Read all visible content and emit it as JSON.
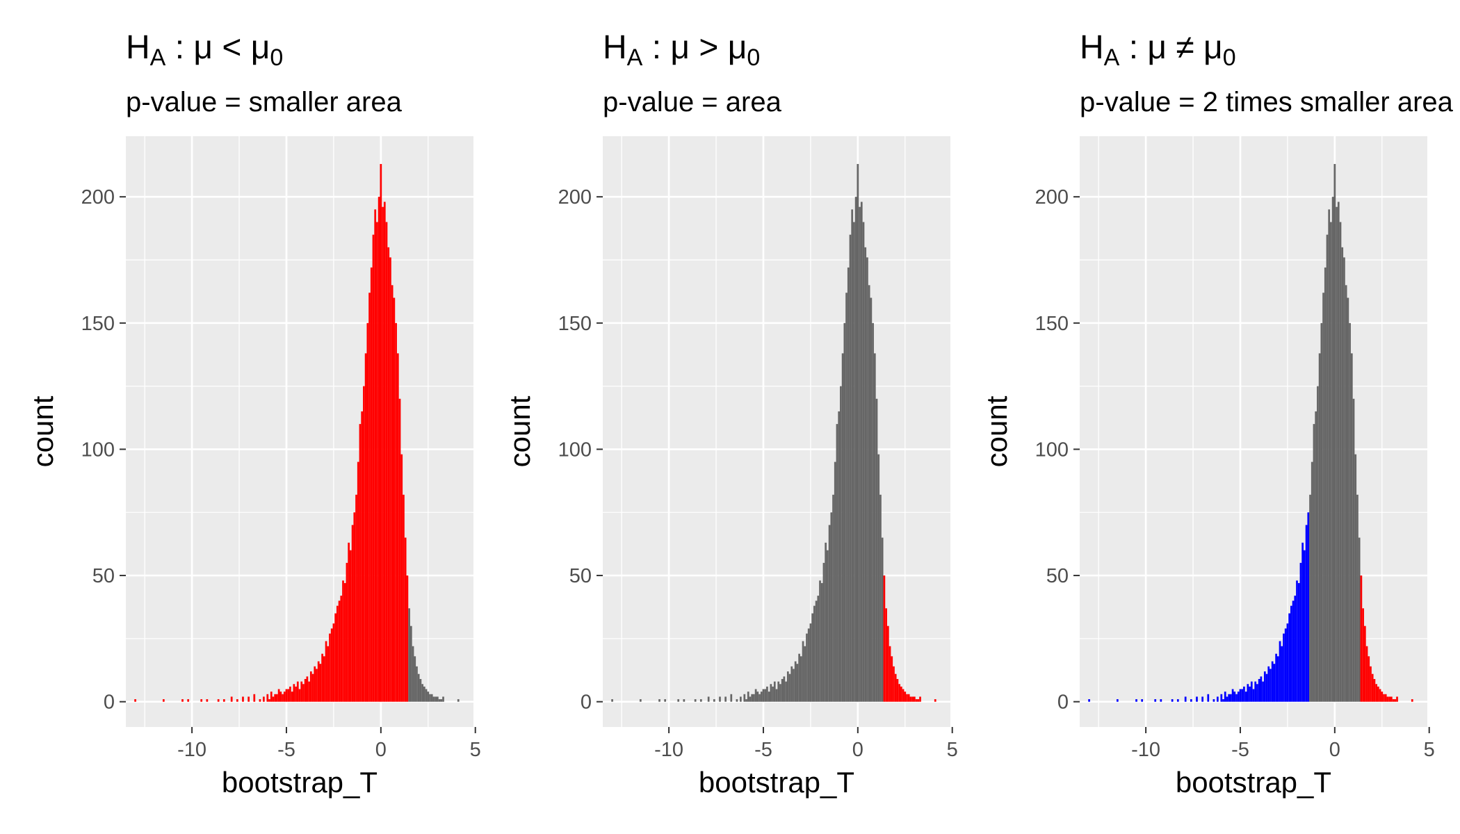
{
  "chart_data": [
    {
      "type": "bar",
      "title_main": "H",
      "title_sub": "A",
      "title_rest": " : μ < μ",
      "title_end": "0",
      "subtitle": "p-value = smaller area",
      "xlabel": "bootstrap_T",
      "ylabel": "count",
      "xlim": [
        -13.5,
        4.9
      ],
      "ylim": [
        -10,
        224
      ],
      "x_ticks": [
        -10,
        -5,
        0,
        5
      ],
      "x_tick_labels": [
        "-10",
        "-5",
        "0",
        "5"
      ],
      "y_ticks": [
        0,
        50,
        100,
        150,
        200
      ],
      "y_tick_labels": [
        "0",
        "50",
        "100",
        "150",
        "200"
      ],
      "colors": {
        "panel": "#ebebeb",
        "grid": "#ffffff",
        "default": "#666666",
        "upper": "#ff0000",
        "lower": "#0000ff"
      },
      "shading": {
        "lower_cut": 1.4,
        "lower_color": "red",
        "upper_cut": null,
        "upper_color": null
      },
      "bin_width": 0.1,
      "bins_x": [
        -13.0,
        -11.5,
        -10.5,
        -10.2,
        -9.5,
        -9.2,
        -8.6,
        -8.3,
        -7.9,
        -7.6,
        -7.3,
        -7.0,
        -6.7,
        -6.4,
        -6.2,
        -6.0,
        -5.9,
        -5.8,
        -5.7,
        -5.6,
        -5.5,
        -5.4,
        -5.3,
        -5.2,
        -5.1,
        -5.0,
        -4.9,
        -4.8,
        -4.7,
        -4.6,
        -4.5,
        -4.4,
        -4.3,
        -4.2,
        -4.1,
        -4.0,
        -3.9,
        -3.8,
        -3.7,
        -3.6,
        -3.5,
        -3.4,
        -3.3,
        -3.2,
        -3.1,
        -3.0,
        -2.9,
        -2.8,
        -2.7,
        -2.6,
        -2.5,
        -2.4,
        -2.3,
        -2.2,
        -2.1,
        -2.0,
        -1.9,
        -1.8,
        -1.7,
        -1.6,
        -1.5,
        -1.4,
        -1.3,
        -1.2,
        -1.1,
        -1.0,
        -0.9,
        -0.8,
        -0.7,
        -0.6,
        -0.5,
        -0.4,
        -0.3,
        -0.2,
        -0.1,
        0.0,
        0.1,
        0.2,
        0.3,
        0.4,
        0.5,
        0.6,
        0.7,
        0.8,
        0.9,
        1.0,
        1.1,
        1.2,
        1.3,
        1.4,
        1.5,
        1.6,
        1.7,
        1.8,
        1.9,
        2.0,
        2.1,
        2.2,
        2.3,
        2.4,
        2.5,
        2.6,
        2.7,
        2.8,
        2.9,
        3.0,
        3.1,
        3.2,
        3.3,
        4.1
      ],
      "bins_count": [
        1,
        1,
        1,
        1,
        1,
        1,
        1,
        1,
        2,
        1,
        2,
        2,
        3,
        1,
        2,
        3,
        1,
        4,
        2,
        3,
        3,
        5,
        4,
        3,
        4,
        5,
        5,
        6,
        4,
        7,
        6,
        8,
        5,
        8,
        7,
        9,
        10,
        8,
        12,
        11,
        14,
        13,
        16,
        15,
        19,
        18,
        24,
        22,
        27,
        29,
        31,
        35,
        38,
        40,
        42,
        48,
        47,
        55,
        63,
        60,
        70,
        75,
        82,
        95,
        110,
        115,
        125,
        138,
        150,
        162,
        172,
        185,
        195,
        190,
        200,
        213,
        196,
        198,
        190,
        180,
        176,
        165,
        160,
        150,
        138,
        120,
        98,
        82,
        65,
        50,
        37,
        30,
        22,
        18,
        14,
        11,
        9,
        7,
        6,
        5,
        4,
        3,
        3,
        2,
        2,
        2,
        1,
        1,
        2,
        1
      ]
    },
    {
      "type": "bar",
      "title_main": "H",
      "title_sub": "A",
      "title_rest": " : μ > μ",
      "title_end": "0",
      "subtitle": "p-value = area",
      "xlabel": "bootstrap_T",
      "ylabel": "count",
      "xlim": [
        -13.5,
        4.9
      ],
      "ylim": [
        -10,
        224
      ],
      "x_ticks": [
        -10,
        -5,
        0,
        5
      ],
      "x_tick_labels": [
        "-10",
        "-5",
        "0",
        "5"
      ],
      "y_ticks": [
        0,
        50,
        100,
        150,
        200
      ],
      "y_tick_labels": [
        "0",
        "50",
        "100",
        "150",
        "200"
      ],
      "colors": {
        "panel": "#ebebeb",
        "grid": "#ffffff",
        "default": "#666666",
        "upper": "#ff0000",
        "lower": "#0000ff"
      },
      "shading": {
        "lower_cut": null,
        "lower_color": null,
        "upper_cut": 1.4,
        "upper_color": "red"
      },
      "bin_width": 0.1,
      "bins_x": [
        -13.0,
        -11.5,
        -10.5,
        -10.2,
        -9.5,
        -9.2,
        -8.6,
        -8.3,
        -7.9,
        -7.6,
        -7.3,
        -7.0,
        -6.7,
        -6.4,
        -6.2,
        -6.0,
        -5.9,
        -5.8,
        -5.7,
        -5.6,
        -5.5,
        -5.4,
        -5.3,
        -5.2,
        -5.1,
        -5.0,
        -4.9,
        -4.8,
        -4.7,
        -4.6,
        -4.5,
        -4.4,
        -4.3,
        -4.2,
        -4.1,
        -4.0,
        -3.9,
        -3.8,
        -3.7,
        -3.6,
        -3.5,
        -3.4,
        -3.3,
        -3.2,
        -3.1,
        -3.0,
        -2.9,
        -2.8,
        -2.7,
        -2.6,
        -2.5,
        -2.4,
        -2.3,
        -2.2,
        -2.1,
        -2.0,
        -1.9,
        -1.8,
        -1.7,
        -1.6,
        -1.5,
        -1.4,
        -1.3,
        -1.2,
        -1.1,
        -1.0,
        -0.9,
        -0.8,
        -0.7,
        -0.6,
        -0.5,
        -0.4,
        -0.3,
        -0.2,
        -0.1,
        0.0,
        0.1,
        0.2,
        0.3,
        0.4,
        0.5,
        0.6,
        0.7,
        0.8,
        0.9,
        1.0,
        1.1,
        1.2,
        1.3,
        1.4,
        1.5,
        1.6,
        1.7,
        1.8,
        1.9,
        2.0,
        2.1,
        2.2,
        2.3,
        2.4,
        2.5,
        2.6,
        2.7,
        2.8,
        2.9,
        3.0,
        3.1,
        3.2,
        3.3,
        4.1
      ],
      "bins_count": [
        1,
        1,
        1,
        1,
        1,
        1,
        1,
        1,
        2,
        1,
        2,
        2,
        3,
        1,
        2,
        3,
        1,
        4,
        2,
        3,
        3,
        5,
        4,
        3,
        4,
        5,
        5,
        6,
        4,
        7,
        6,
        8,
        5,
        8,
        7,
        9,
        10,
        8,
        12,
        11,
        14,
        13,
        16,
        15,
        19,
        18,
        24,
        22,
        27,
        29,
        31,
        35,
        38,
        40,
        42,
        48,
        47,
        55,
        63,
        60,
        70,
        75,
        82,
        95,
        110,
        115,
        125,
        138,
        150,
        162,
        172,
        185,
        195,
        190,
        200,
        213,
        196,
        198,
        190,
        180,
        176,
        165,
        160,
        150,
        138,
        120,
        98,
        82,
        65,
        50,
        37,
        30,
        22,
        18,
        14,
        11,
        9,
        7,
        6,
        5,
        4,
        3,
        3,
        2,
        2,
        2,
        1,
        1,
        2,
        1
      ]
    },
    {
      "type": "bar",
      "title_main": "H",
      "title_sub": "A",
      "title_rest": " : μ ≠ μ",
      "title_end": "0",
      "subtitle": "p-value = 2 times smaller area",
      "xlabel": "bootstrap_T",
      "ylabel": "count",
      "xlim": [
        -13.5,
        4.9
      ],
      "ylim": [
        -10,
        224
      ],
      "x_ticks": [
        -10,
        -5,
        0,
        5
      ],
      "x_tick_labels": [
        "-10",
        "-5",
        "0",
        "5"
      ],
      "y_ticks": [
        0,
        50,
        100,
        150,
        200
      ],
      "y_tick_labels": [
        "0",
        "50",
        "100",
        "150",
        "200"
      ],
      "colors": {
        "panel": "#ebebeb",
        "grid": "#ffffff",
        "default": "#666666",
        "upper": "#ff0000",
        "lower": "#0000ff"
      },
      "shading": {
        "lower_cut": -1.4,
        "lower_color": "blue",
        "upper_cut": 1.4,
        "upper_color": "red"
      },
      "bin_width": 0.1,
      "bins_x": [
        -13.0,
        -11.5,
        -10.5,
        -10.2,
        -9.5,
        -9.2,
        -8.6,
        -8.3,
        -7.9,
        -7.6,
        -7.3,
        -7.0,
        -6.7,
        -6.4,
        -6.2,
        -6.0,
        -5.9,
        -5.8,
        -5.7,
        -5.6,
        -5.5,
        -5.4,
        -5.3,
        -5.2,
        -5.1,
        -5.0,
        -4.9,
        -4.8,
        -4.7,
        -4.6,
        -4.5,
        -4.4,
        -4.3,
        -4.2,
        -4.1,
        -4.0,
        -3.9,
        -3.8,
        -3.7,
        -3.6,
        -3.5,
        -3.4,
        -3.3,
        -3.2,
        -3.1,
        -3.0,
        -2.9,
        -2.8,
        -2.7,
        -2.6,
        -2.5,
        -2.4,
        -2.3,
        -2.2,
        -2.1,
        -2.0,
        -1.9,
        -1.8,
        -1.7,
        -1.6,
        -1.5,
        -1.4,
        -1.3,
        -1.2,
        -1.1,
        -1.0,
        -0.9,
        -0.8,
        -0.7,
        -0.6,
        -0.5,
        -0.4,
        -0.3,
        -0.2,
        -0.1,
        0.0,
        0.1,
        0.2,
        0.3,
        0.4,
        0.5,
        0.6,
        0.7,
        0.8,
        0.9,
        1.0,
        1.1,
        1.2,
        1.3,
        1.4,
        1.5,
        1.6,
        1.7,
        1.8,
        1.9,
        2.0,
        2.1,
        2.2,
        2.3,
        2.4,
        2.5,
        2.6,
        2.7,
        2.8,
        2.9,
        3.0,
        3.1,
        3.2,
        3.3,
        4.1
      ],
      "bins_count": [
        1,
        1,
        1,
        1,
        1,
        1,
        1,
        1,
        2,
        1,
        2,
        2,
        3,
        1,
        2,
        3,
        1,
        4,
        2,
        3,
        3,
        5,
        4,
        3,
        4,
        5,
        5,
        6,
        4,
        7,
        6,
        8,
        5,
        8,
        7,
        9,
        10,
        8,
        12,
        11,
        14,
        13,
        16,
        15,
        19,
        18,
        24,
        22,
        27,
        29,
        31,
        35,
        38,
        40,
        42,
        48,
        47,
        55,
        63,
        60,
        70,
        75,
        82,
        95,
        110,
        115,
        125,
        138,
        150,
        162,
        172,
        185,
        195,
        190,
        200,
        213,
        196,
        198,
        190,
        180,
        176,
        165,
        160,
        150,
        138,
        120,
        98,
        82,
        65,
        50,
        37,
        30,
        22,
        18,
        14,
        11,
        9,
        7,
        6,
        5,
        4,
        3,
        3,
        2,
        2,
        2,
        1,
        1,
        2,
        1
      ]
    }
  ]
}
